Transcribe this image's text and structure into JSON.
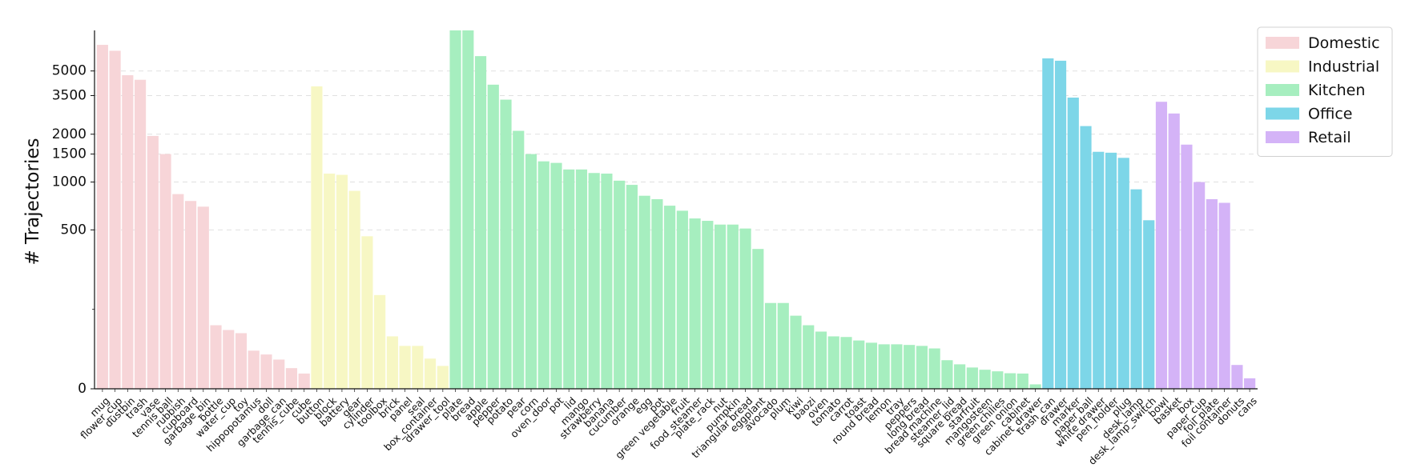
{
  "chart_data": {
    "type": "bar",
    "ylabel": "# Trajectories",
    "yscale": "symlog",
    "ylim": [
      0,
      9000
    ],
    "yticks": [
      0,
      500,
      1000,
      1500,
      2000,
      3500,
      5000
    ],
    "ytick_labels": [
      "0",
      "500",
      "1000",
      "1500",
      "2000",
      "3500",
      "5000"
    ],
    "grid": "horizontal dashed",
    "legend_position": "top-right",
    "groups": [
      {
        "name": "Domestic",
        "color": "#f7d5d8",
        "categories": [
          "mug",
          "flower_cup",
          "dustbin",
          "trash",
          "vase",
          "tennis ball",
          "rubbish",
          "cupboard",
          "garbage_bin",
          "bottle",
          "water_cup",
          "toy",
          "hippopotamus",
          "doll",
          "garbage_can",
          "tennis_cube",
          "cube"
        ],
        "values": [
          7300,
          6700,
          4700,
          4400,
          1950,
          1500,
          840,
          760,
          700,
          200,
          185,
          175,
          120,
          108,
          92,
          65,
          48
        ]
      },
      {
        "name": "Industrial",
        "color": "#f7f7c4",
        "categories": [
          "button",
          "block",
          "battery",
          "gear",
          "cylinder",
          "toolbox",
          "brick",
          "panel",
          "seal",
          "box_container",
          "drawer_tool"
        ],
        "values": [
          4000,
          1130,
          1110,
          880,
          480,
          295,
          165,
          135,
          135,
          95,
          72
        ]
      },
      {
        "name": "Kitchen",
        "color": "#a6eebf",
        "categories": [
          "plate",
          "bread",
          "apple",
          "pepper",
          "potato",
          "pear",
          "corn",
          "oven_door",
          "pot",
          "lid",
          "mango",
          "strawberry",
          "banana",
          "cucumber",
          "orange",
          "egg",
          "pot",
          "green vegetable",
          "fruit",
          "food_steamer",
          "plate_rack",
          "nut",
          "pumpkin",
          "triangular bread",
          "eggplant",
          "avocado",
          "plum",
          "kiwi",
          "baozi",
          "oven",
          "tomato",
          "carrot",
          "toast",
          "round bread",
          "lemon",
          "tray",
          "peppers",
          "long bread",
          "bread machine",
          "steamer_lid",
          "square bread",
          "starfruit",
          "mangosteen",
          "green chilies",
          "green onion",
          "cabinet",
          "cabinet_drawer"
        ],
        "values": [
          9000,
          9000,
          6200,
          4100,
          3300,
          2100,
          1500,
          1350,
          1320,
          1200,
          1200,
          1140,
          1130,
          1020,
          960,
          820,
          780,
          710,
          660,
          590,
          570,
          540,
          540,
          510,
          440,
          270,
          270,
          230,
          200,
          180,
          165,
          163,
          152,
          145,
          140,
          140,
          138,
          135,
          127,
          90,
          77,
          67,
          60,
          55,
          49,
          48,
          14
        ]
      },
      {
        "name": "Office",
        "color": "#7dd6e8",
        "categories": [
          "trash_can",
          "drawer",
          "marker",
          "paper ball",
          "white drawer",
          "pen_holder",
          "plug",
          "desk_lamp",
          "desk_lamp_switch"
        ],
        "values": [
          6000,
          5800,
          3400,
          2250,
          1550,
          1530,
          1420,
          900,
          575
        ]
      },
      {
        "name": "Retail",
        "color": "#d4b3f7",
        "categories": [
          "bowl",
          "basket",
          "box",
          "paper_cup",
          "foil_plate",
          "foil container",
          "donuts",
          "cans"
        ],
        "values": [
          3200,
          2700,
          1720,
          1000,
          780,
          740,
          75,
          33
        ]
      }
    ]
  }
}
